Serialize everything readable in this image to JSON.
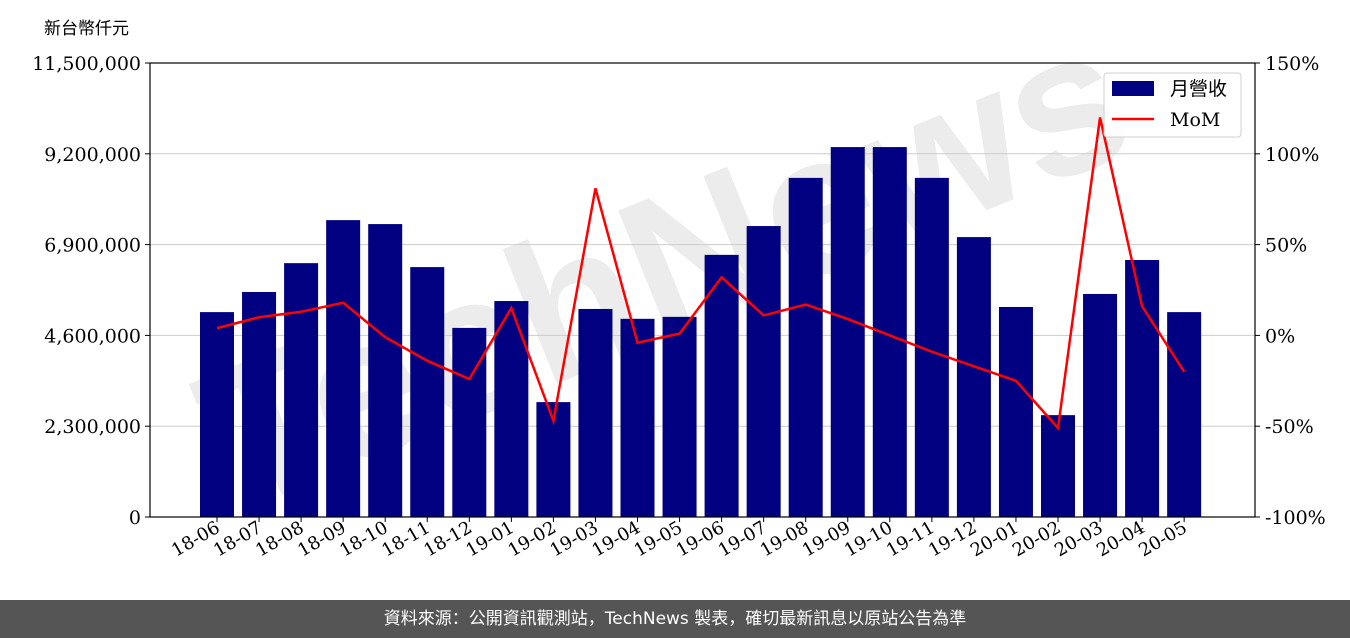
{
  "unit_label": "新台幣仟元",
  "footer": "資料來源：公開資訊觀測站，TechNews 製表，確切最新訊息以原站公告為準",
  "watermark": "TechNews",
  "chart_data": {
    "type": "bar+line",
    "categories": [
      "18-06",
      "18-07",
      "18-08",
      "18-09",
      "18-10",
      "18-11",
      "18-12",
      "19-01",
      "19-02",
      "19-03",
      "19-04",
      "19-05",
      "19-06",
      "19-07",
      "19-08",
      "19-09",
      "19-10",
      "19-11",
      "19-12",
      "20-01",
      "20-02",
      "20-03",
      "20-04",
      "20-05"
    ],
    "series": [
      {
        "name": "月營收",
        "type": "bar",
        "axis": "left",
        "color": "#000080",
        "values": [
          5190000,
          5700000,
          6430000,
          7520000,
          7420000,
          6330000,
          4790000,
          5470000,
          2910000,
          5270000,
          5020000,
          5070000,
          6640000,
          7370000,
          8590000,
          9370000,
          9370000,
          8590000,
          7090000,
          5320000,
          2580000,
          5650000,
          6510000,
          5190000
        ]
      },
      {
        "name": "MoM",
        "type": "line",
        "axis": "right",
        "color": "#ff0000",
        "values": [
          4,
          10,
          13,
          18,
          -1,
          -14,
          -24,
          15,
          -47,
          81,
          -4,
          1,
          32,
          11,
          17,
          9,
          0,
          -9,
          -17,
          -25,
          -51,
          120,
          16,
          -20
        ]
      }
    ],
    "left_axis": {
      "ylim": [
        0,
        11500000
      ],
      "ticks": [
        "0",
        "2,300,000",
        "4,600,000",
        "6,900,000",
        "9,200,000",
        "11,500,000"
      ]
    },
    "right_axis": {
      "ylim": [
        -100,
        150
      ],
      "ticks": [
        "-100%",
        "-50%",
        "0%",
        "50%",
        "100%",
        "150%"
      ]
    },
    "grid": true,
    "legend": "top-right"
  }
}
